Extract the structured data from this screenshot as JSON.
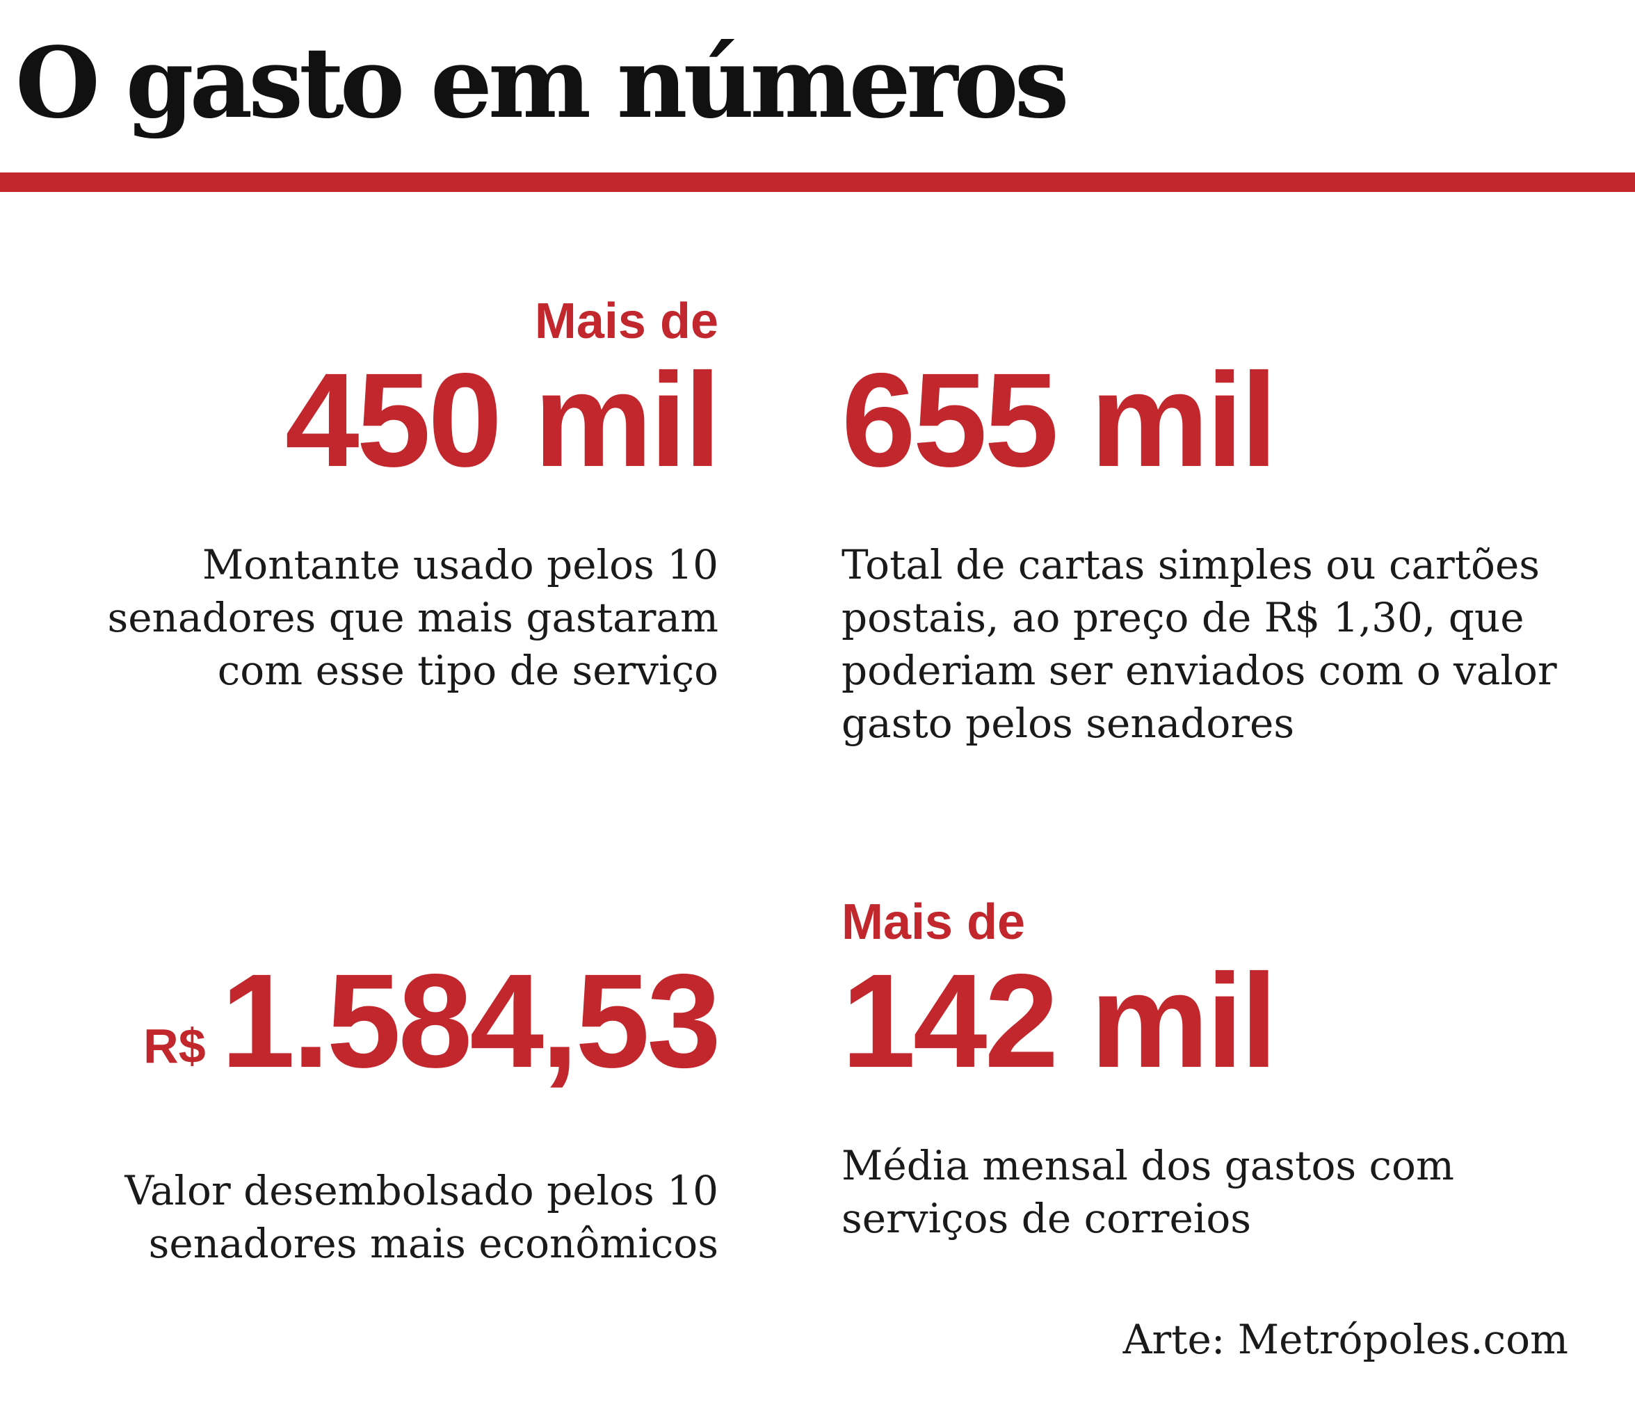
{
  "header": {
    "title": "O gasto em números"
  },
  "stats": [
    {
      "prefix": "Mais de",
      "value": "450 mil",
      "description": [
        "Montante usado pelos 10",
        "senadores que mais gastaram",
        "com esse tipo de serviço"
      ]
    },
    {
      "prefix": "",
      "value": "655 mil",
      "description": [
        "Total de cartas simples ou cartões",
        "postais, ao preço de R$ 1,30, que",
        "poderiam ser enviados com o valor",
        "gasto pelos senadores"
      ]
    },
    {
      "currency": "R$",
      "value": "1.584,53",
      "description": [
        "Valor desembolsado pelos 10",
        "senadores mais econômicos"
      ]
    },
    {
      "prefix": "Mais de",
      "value": "142 mil",
      "description": [
        "Média mensal dos gastos com",
        "serviços de correios"
      ]
    }
  ],
  "footer": {
    "credit": "Arte: Metrópoles.com"
  },
  "colors": {
    "accent": "#c1272d",
    "text": "#1a1a1a",
    "title": "#111111",
    "background": "#ffffff"
  }
}
